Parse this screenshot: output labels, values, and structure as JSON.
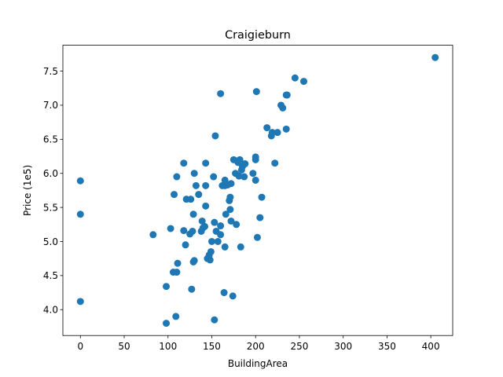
{
  "chart_data": {
    "type": "scatter",
    "title": "Craigieburn",
    "xlabel": "BuildingArea",
    "ylabel": "Price (1e5)",
    "xlim": [
      -20,
      425
    ],
    "ylim": [
      3.62,
      7.88
    ],
    "xticks": [
      0,
      50,
      100,
      150,
      200,
      250,
      300,
      350,
      400
    ],
    "yticks": [
      4.0,
      4.5,
      5.0,
      5.5,
      6.0,
      6.5,
      7.0,
      7.5
    ],
    "xtick_labels": [
      "0",
      "50",
      "100",
      "150",
      "200",
      "250",
      "300",
      "350",
      "400"
    ],
    "ytick_labels": [
      "4.0",
      "4.5",
      "5.0",
      "5.5",
      "6.0",
      "6.5",
      "7.0",
      "7.5"
    ],
    "grid": false,
    "marker_color": "#1f77b4",
    "points": [
      [
        0,
        5.89
      ],
      [
        0,
        5.4
      ],
      [
        0,
        4.12
      ],
      [
        83,
        5.1
      ],
      [
        98,
        4.34
      ],
      [
        98,
        3.8
      ],
      [
        103,
        5.19
      ],
      [
        106,
        4.55
      ],
      [
        107,
        5.69
      ],
      [
        109,
        3.9
      ],
      [
        110,
        4.55
      ],
      [
        110,
        5.95
      ],
      [
        111,
        4.68
      ],
      [
        118,
        5.16
      ],
      [
        118,
        6.15
      ],
      [
        120,
        4.95
      ],
      [
        121,
        5.62
      ],
      [
        125,
        5.11
      ],
      [
        126,
        5.62
      ],
      [
        127,
        4.3
      ],
      [
        128,
        5.15
      ],
      [
        129,
        4.7
      ],
      [
        129,
        5.4
      ],
      [
        130,
        6.0
      ],
      [
        130,
        4.72
      ],
      [
        132,
        5.82
      ],
      [
        135,
        5.69
      ],
      [
        138,
        5.15
      ],
      [
        139,
        5.3
      ],
      [
        140,
        5.2
      ],
      [
        142,
        5.22
      ],
      [
        143,
        5.82
      ],
      [
        143,
        6.15
      ],
      [
        143,
        5.52
      ],
      [
        145,
        4.75
      ],
      [
        147,
        4.8
      ],
      [
        148,
        4.73
      ],
      [
        149,
        4.85
      ],
      [
        150,
        5.0
      ],
      [
        152,
        5.95
      ],
      [
        153,
        5.28
      ],
      [
        153,
        3.85
      ],
      [
        154,
        6.55
      ],
      [
        155,
        5.15
      ],
      [
        157,
        5.0
      ],
      [
        160,
        5.23
      ],
      [
        160,
        5.1
      ],
      [
        160,
        7.17
      ],
      [
        162,
        5.82
      ],
      [
        164,
        4.25
      ],
      [
        165,
        5.82
      ],
      [
        165,
        5.9
      ],
      [
        165,
        4.92
      ],
      [
        166,
        5.4
      ],
      [
        168,
        5.83
      ],
      [
        170,
        5.6
      ],
      [
        171,
        5.65
      ],
      [
        171,
        5.47
      ],
      [
        172,
        5.85
      ],
      [
        172,
        5.3
      ],
      [
        174,
        4.2
      ],
      [
        175,
        6.2
      ],
      [
        177,
        6.0
      ],
      [
        178,
        5.25
      ],
      [
        180,
        6.16
      ],
      [
        181,
        5.96
      ],
      [
        182,
        6.2
      ],
      [
        183,
        4.92
      ],
      [
        184,
        6.05
      ],
      [
        185,
        6.1
      ],
      [
        187,
        5.95
      ],
      [
        188,
        6.14
      ],
      [
        197,
        6.0
      ],
      [
        200,
        6.24
      ],
      [
        200,
        6.2
      ],
      [
        200,
        5.9
      ],
      [
        201,
        7.2
      ],
      [
        202,
        5.06
      ],
      [
        205,
        5.35
      ],
      [
        207,
        5.65
      ],
      [
        213,
        6.67
      ],
      [
        218,
        6.55
      ],
      [
        219,
        6.6
      ],
      [
        222,
        6.15
      ],
      [
        225,
        6.6
      ],
      [
        229,
        7.0
      ],
      [
        231,
        6.96
      ],
      [
        235,
        6.65
      ],
      [
        235,
        7.15
      ],
      [
        236,
        7.15
      ],
      [
        245,
        7.4
      ],
      [
        255,
        7.35
      ],
      [
        405,
        7.7
      ]
    ]
  }
}
